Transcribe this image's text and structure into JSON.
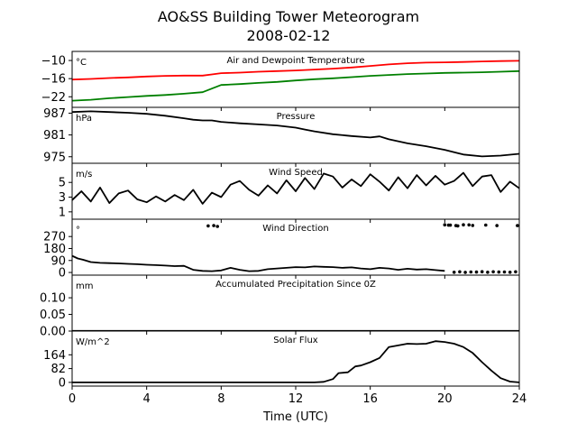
{
  "figure": {
    "title_line1": "AO&SS Building Tower Meteorogram",
    "title_line2": "2008-02-12",
    "xlabel": "Time (UTC)"
  },
  "chart_data": {
    "type": "line",
    "x_axis": {
      "label": "Time (UTC)",
      "range": [
        0,
        24
      ],
      "ticks": [
        0,
        4,
        8,
        12,
        16,
        20,
        24
      ]
    },
    "panels": [
      {
        "id": "temperature",
        "title": "Air and Dewpoint Temperature",
        "unit": "°C",
        "ylim": [
          -25.5,
          -7
        ],
        "yticks": [
          -10,
          -16,
          -22
        ],
        "yticklabels": [
          "−10",
          "−16",
          "−22"
        ],
        "series": [
          {
            "key": "air",
            "color": "#ff0000",
            "x": [
              0,
              1,
              2,
              3,
              4,
              5,
              6,
              7,
              7.5,
              8,
              9,
              10,
              11,
              12,
              13,
              14,
              15,
              16,
              17,
              18,
              19,
              20,
              21,
              22,
              23,
              24
            ],
            "y": [
              -16.3,
              -16.1,
              -15.8,
              -15.6,
              -15.3,
              -15.1,
              -15.0,
              -15.0,
              -14.6,
              -14.2,
              -14.0,
              -13.7,
              -13.5,
              -13.3,
              -13.0,
              -12.7,
              -12.3,
              -11.8,
              -11.3,
              -10.9,
              -10.7,
              -10.6,
              -10.5,
              -10.3,
              -10.2,
              -10.1
            ]
          },
          {
            "key": "dewpoint",
            "color": "#008000",
            "x": [
              0,
              1,
              2,
              3,
              4,
              5,
              6,
              7,
              7.5,
              8,
              9,
              10,
              11,
              12,
              13,
              14,
              15,
              16,
              17,
              18,
              19,
              20,
              21,
              22,
              23,
              24
            ],
            "y": [
              -23.3,
              -23.0,
              -22.5,
              -22.1,
              -21.7,
              -21.4,
              -21.0,
              -20.5,
              -19.3,
              -18.1,
              -17.8,
              -17.4,
              -17.1,
              -16.6,
              -16.2,
              -15.9,
              -15.5,
              -15.1,
              -14.8,
              -14.5,
              -14.3,
              -14.1,
              -14.0,
              -13.9,
              -13.7,
              -13.5
            ]
          }
        ]
      },
      {
        "id": "pressure",
        "title": "Pressure",
        "unit": "hPa",
        "ylim": [
          973.2,
          988.6
        ],
        "yticks": [
          987,
          981,
          975
        ],
        "yticklabels": [
          "987",
          "981",
          "975"
        ],
        "series": [
          {
            "key": "pressure",
            "color": "#000000",
            "x": [
              0,
              1,
              2,
              3,
              4,
              5,
              6,
              6.5,
              7,
              7.5,
              8,
              9,
              10,
              11,
              12,
              12.5,
              13,
              14,
              15,
              16,
              16.5,
              17,
              18,
              19,
              20,
              21,
              22,
              23,
              24
            ],
            "y": [
              987.3,
              987.5,
              987.3,
              987.1,
              986.8,
              986.3,
              985.6,
              985.2,
              985.0,
              985.0,
              984.6,
              984.2,
              983.9,
              983.6,
              983.0,
              982.5,
              982.0,
              981.2,
              980.7,
              980.3,
              980.6,
              979.8,
              978.7,
              977.9,
              976.9,
              975.6,
              975.1,
              975.3,
              975.8
            ]
          }
        ]
      },
      {
        "id": "wind_speed",
        "title": "Wind Speed",
        "unit": "m/s",
        "ylim": [
          0,
          7.6
        ],
        "yticks": [
          5,
          3,
          1
        ],
        "yticklabels": [
          "5",
          "3",
          "1"
        ],
        "series": [
          {
            "key": "wind_speed",
            "color": "#000000",
            "x": [
              0,
              0.5,
              1,
              1.5,
              2,
              2.5,
              3,
              3.5,
              4,
              4.5,
              5,
              5.5,
              6,
              6.5,
              7,
              7.5,
              8,
              8.5,
              9,
              9.5,
              10,
              10.5,
              11,
              11.5,
              12,
              12.5,
              13,
              13.5,
              14,
              14.5,
              15,
              15.5,
              16,
              16.5,
              17,
              17.5,
              18,
              18.5,
              19,
              19.5,
              20,
              20.5,
              21,
              21.5,
              22,
              22.5,
              23,
              23.5,
              24
            ],
            "y": [
              2.6,
              3.8,
              2.4,
              4.3,
              2.2,
              3.5,
              3.9,
              2.7,
              2.3,
              3.1,
              2.4,
              3.3,
              2.6,
              4.0,
              2.1,
              3.6,
              3.0,
              4.7,
              5.2,
              4.0,
              3.2,
              4.6,
              3.5,
              5.3,
              3.8,
              5.6,
              4.1,
              6.2,
              5.8,
              4.3,
              5.4,
              4.5,
              6.1,
              5.1,
              3.9,
              5.7,
              4.2,
              6.0,
              4.6,
              5.9,
              4.7,
              5.2,
              6.3,
              4.5,
              5.8,
              6.0,
              3.7,
              5.1,
              4.2
            ]
          }
        ]
      },
      {
        "id": "wind_direction",
        "title": "Wind Direction",
        "unit": "°",
        "ylim": [
          -20,
          400
        ],
        "yticks": [
          270,
          180,
          90,
          0
        ],
        "yticklabels": [
          "270",
          "180",
          "90",
          "0"
        ],
        "series": [
          {
            "key": "wind_direction",
            "color": "#000000",
            "x": [
              0,
              0.3,
              0.6,
              1,
              1.5,
              2,
              2.5,
              3,
              3.5,
              4,
              4.5,
              5,
              5.5,
              6,
              6.5,
              7,
              7.5,
              8,
              8.5,
              9,
              9.5,
              10,
              10.5,
              11,
              11.5,
              12,
              12.5,
              13,
              13.5,
              14,
              14.5,
              15,
              15.5,
              16,
              16.5,
              17,
              17.5,
              18,
              18.5,
              19,
              19.5,
              20
            ],
            "y": [
              125,
              105,
              95,
              78,
              72,
              70,
              68,
              65,
              62,
              58,
              55,
              52,
              48,
              50,
              20,
              12,
              10,
              15,
              35,
              20,
              10,
              12,
              25,
              30,
              35,
              40,
              38,
              45,
              42,
              40,
              35,
              38,
              30,
              25,
              35,
              30,
              20,
              28,
              22,
              25,
              18,
              12
            ]
          }
        ],
        "scatter": {
          "key": "wind_direction_points",
          "color": "#000000",
          "x": [
            20.5,
            20.8,
            21.1,
            21.4,
            21.7,
            22.0,
            22.3,
            22.6,
            22.9,
            23.2,
            23.5,
            23.8,
            20.2,
            20.6,
            21.3,
            22.2,
            7.3,
            7.6,
            7.8,
            20.0,
            20.3,
            20.7,
            21.0,
            21.5,
            22.8,
            23.9
          ],
          "y": [
            2,
            5,
            1,
            4,
            3,
            6,
            2,
            5,
            3,
            4,
            2,
            5,
            355,
            352,
            357,
            356,
            350,
            352,
            346,
            358,
            355,
            350,
            358,
            353,
            352,
            352
          ]
        }
      },
      {
        "id": "precipitation",
        "title": "Accumulated Precipitation Since 0Z",
        "unit": "mm",
        "ylim": [
          0,
          0.168
        ],
        "yticks": [
          0.1,
          0.05,
          0.0
        ],
        "yticklabels": [
          "0.10",
          "0.05",
          "0.00"
        ],
        "series": [
          {
            "key": "precipitation",
            "color": "#000000",
            "x": [
              0,
              24
            ],
            "y": [
              0,
              0
            ]
          }
        ]
      },
      {
        "id": "solar_flux",
        "title": "Solar Flux",
        "unit": "W/m^2",
        "ylim": [
          -22,
          305
        ],
        "yticks": [
          164,
          82,
          0
        ],
        "yticklabels": [
          "164",
          "82",
          "0"
        ],
        "series": [
          {
            "key": "solar_flux",
            "color": "#000000",
            "x": [
              0,
              13,
              13.5,
              14,
              14.3,
              14.8,
              15.2,
              15.5,
              16,
              16.5,
              17,
              17.5,
              18,
              18.5,
              19,
              19.5,
              20,
              20.5,
              21,
              21.5,
              22,
              22.5,
              23,
              23.5,
              24
            ],
            "y": [
              0,
              0,
              3,
              20,
              55,
              60,
              95,
              100,
              120,
              145,
              210,
              220,
              230,
              228,
              230,
              245,
              240,
              230,
              210,
              175,
              120,
              70,
              25,
              5,
              0
            ]
          }
        ]
      }
    ]
  }
}
